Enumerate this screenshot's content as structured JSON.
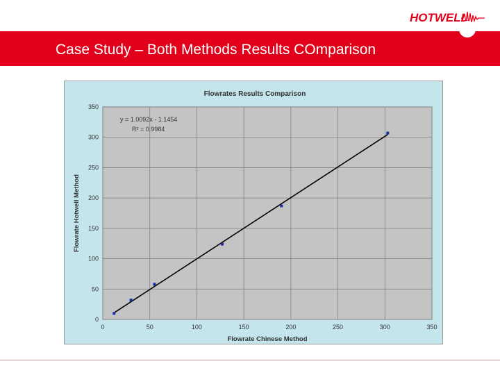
{
  "logo": {
    "text": "HOTWELL"
  },
  "header": {
    "title": "Case Study – Both Methods Results COmparison"
  },
  "colors": {
    "brand_red": "#e2001a",
    "plot_bg": "#c4c4c4",
    "chart_bg": "#c4e5ec",
    "point": "#1b2fa0",
    "line": "#000000"
  },
  "chart_data": {
    "type": "scatter",
    "title": "Flowrates Results Comparison",
    "xlabel": "Flowrate Chinese Method",
    "ylabel": "Flowrate Hotwell Method",
    "xlim": [
      0,
      350
    ],
    "ylim": [
      0,
      350
    ],
    "xticks": [
      0,
      50,
      100,
      150,
      200,
      250,
      300,
      350
    ],
    "yticks": [
      0,
      50,
      100,
      150,
      200,
      250,
      300,
      350
    ],
    "grid": true,
    "series": [
      {
        "x": [
          12,
          30,
          55,
          127,
          190,
          303
        ],
        "y": [
          10,
          32,
          58,
          124,
          187,
          307
        ]
      }
    ],
    "trendline": {
      "slope": 1.0092,
      "intercept": -1.1454,
      "x_range": [
        12,
        303
      ]
    },
    "annotations": [
      "y = 1.0092x - 1.1454",
      "R² = 0.9984"
    ]
  }
}
